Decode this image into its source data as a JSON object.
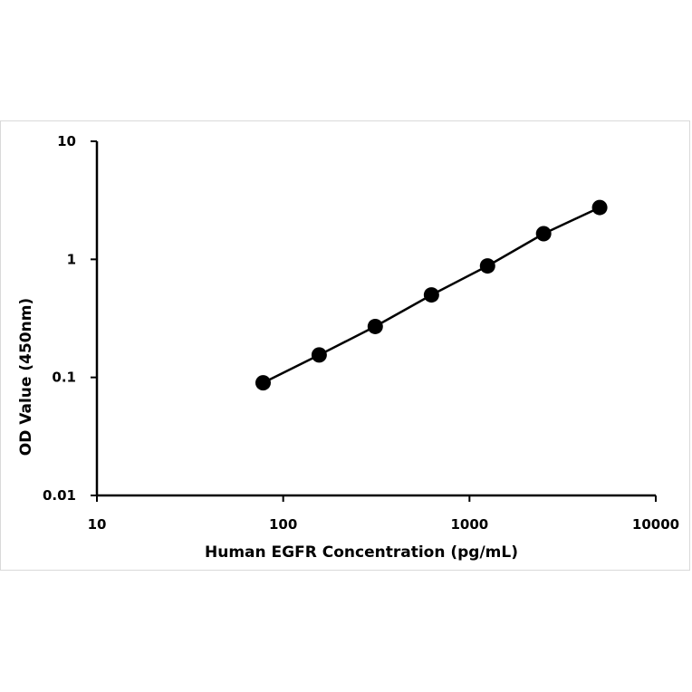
{
  "chart_data": {
    "type": "scatter",
    "title": "",
    "xlabel": "Human EGFR Concentration  (pg/mL)",
    "ylabel": "OD Value (450nm)",
    "xscale": "log",
    "yscale": "log",
    "xlim": [
      10,
      10000
    ],
    "ylim": [
      0.01,
      10
    ],
    "xticks": [
      10,
      100,
      1000,
      10000
    ],
    "xtick_labels": [
      "10",
      "100",
      "1000",
      "10000"
    ],
    "yticks": [
      0.01,
      0.1,
      1,
      10
    ],
    "ytick_labels": [
      "0.01",
      "0.1",
      "1",
      "10"
    ],
    "grid": false,
    "legend": "none",
    "series": [
      {
        "x": [
          78,
          156,
          312,
          625,
          1250,
          2500,
          5000
        ],
        "y": [
          0.09,
          0.155,
          0.27,
          0.5,
          0.88,
          1.65,
          2.75
        ],
        "marker": "circle",
        "color": "#000000",
        "connected": true
      }
    ]
  }
}
